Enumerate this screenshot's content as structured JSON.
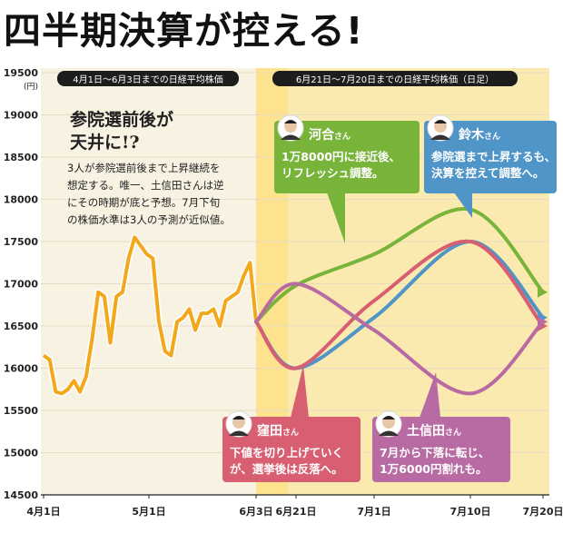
{
  "headline": "四半期決算が控える!",
  "chart_data": {
    "type": "line",
    "ylabel_unit": "(円)",
    "ylim": [
      14500,
      19500
    ],
    "yticks": [
      19500,
      19000,
      18500,
      18000,
      17500,
      17000,
      16500,
      16000,
      15500,
      15000,
      14500
    ],
    "xticks": [
      "4月1日",
      "5月1日",
      "6月3日",
      "6月21日",
      "7月1日",
      "7月10日",
      "7月20日"
    ],
    "period_labels": {
      "history": "4月1日〜6月3日までの日経平均株価",
      "forecast": "6月21日〜7月20日までの日経平均株価（日足）"
    },
    "history_series": {
      "name": "日経平均株価",
      "values": [
        16150,
        16100,
        15720,
        15700,
        15750,
        15850,
        15720,
        15900,
        16350,
        16900,
        16850,
        16300,
        16850,
        16900,
        17300,
        17550,
        17450,
        17350,
        17300,
        16550,
        16200,
        16150,
        16550,
        16600,
        16700,
        16450,
        16650,
        16650,
        16700,
        16500,
        16800,
        16850,
        16900,
        17100,
        17250,
        16550
      ]
    },
    "forecast_series": [
      {
        "name": "河合さん",
        "color": "#78b33a",
        "points": [
          [
            "6月3日",
            16550
          ],
          [
            "6月21日",
            16980
          ],
          [
            "7月1日",
            17350
          ],
          [
            "7月10日",
            17880
          ],
          [
            "7月20日",
            16900
          ]
        ]
      },
      {
        "name": "鈴木さん",
        "color": "#4f95c8",
        "points": [
          [
            "6月3日",
            16550
          ],
          [
            "6月21日",
            16000
          ],
          [
            "7月1日",
            16600
          ],
          [
            "7月10日",
            17500
          ],
          [
            "7月20日",
            16600
          ]
        ]
      },
      {
        "name": "窪田さん",
        "color": "#d85f72",
        "points": [
          [
            "6月3日",
            16550
          ],
          [
            "6月21日",
            16000
          ],
          [
            "7月1日",
            16800
          ],
          [
            "7月10日",
            17500
          ],
          [
            "7月20日",
            16500
          ]
        ]
      },
      {
        "name": "土信田さん",
        "color": "#b86aa2",
        "points": [
          [
            "6月3日",
            16550
          ],
          [
            "6月21日",
            17000
          ],
          [
            "7月1日",
            16450
          ],
          [
            "7月10日",
            15700
          ],
          [
            "7月20日",
            16550
          ]
        ]
      }
    ],
    "titles": {
      "main": "参院選前後が",
      "main2": "天井に!?",
      "body": [
        "3人が参院選前後まで上昇継続を",
        "想定する。唯一、土信田さんは逆",
        "にその時期が底と予想。7月下旬",
        "の株価水準は3人の予測が近似値。"
      ]
    },
    "callouts": [
      {
        "name": "河合",
        "suffix": "さん",
        "lines": [
          "1万8000円に接近後、",
          "リフレッシュ調整。"
        ],
        "color": "#78b33a"
      },
      {
        "name": "鈴木",
        "suffix": "さん",
        "lines": [
          "参院選まで上昇するも、",
          "決算を控えて調整へ。"
        ],
        "color": "#4f95c8"
      },
      {
        "name": "窪田",
        "suffix": "さん",
        "lines": [
          "下値を切り上げていく",
          "が、選挙後は反落へ。"
        ],
        "color": "#d85f72"
      },
      {
        "name": "土信田",
        "suffix": "さん",
        "lines": [
          "7月から下落に転じ、",
          "1万6000円割れも。"
        ],
        "color": "#b86aa2"
      }
    ]
  }
}
